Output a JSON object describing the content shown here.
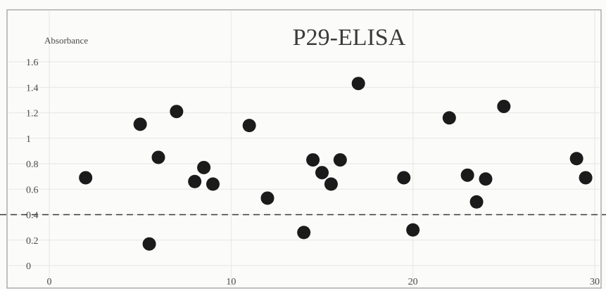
{
  "chart_data": {
    "type": "scatter",
    "title": "P29-ELISA",
    "xlabel": "",
    "ylabel": "Absorbance",
    "xlim": [
      0,
      30
    ],
    "ylim": [
      0,
      1.6
    ],
    "x_ticks": [
      "0",
      "10",
      "20",
      "30"
    ],
    "y_ticks": [
      "0",
      "0.2",
      "0.4",
      "0.6",
      "0.8",
      "1",
      "1.2",
      "1.4",
      "1.6"
    ],
    "grid": true,
    "legend": "none",
    "threshold": {
      "y": 0.4,
      "style": "dashed"
    },
    "point_color": "#1b1b1b",
    "series": [
      {
        "points": [
          {
            "x": 2,
            "y": 0.69
          },
          {
            "x": 5,
            "y": 1.11
          },
          {
            "x": 5.5,
            "y": 0.17
          },
          {
            "x": 6,
            "y": 0.85
          },
          {
            "x": 7,
            "y": 1.21
          },
          {
            "x": 8,
            "y": 0.66
          },
          {
            "x": 8.5,
            "y": 0.77
          },
          {
            "x": 9,
            "y": 0.64
          },
          {
            "x": 11,
            "y": 1.1
          },
          {
            "x": 12,
            "y": 0.53
          },
          {
            "x": 14,
            "y": 0.26
          },
          {
            "x": 14.5,
            "y": 0.83
          },
          {
            "x": 15,
            "y": 0.73
          },
          {
            "x": 15.5,
            "y": 0.64
          },
          {
            "x": 16,
            "y": 0.83
          },
          {
            "x": 17,
            "y": 1.43
          },
          {
            "x": 19.5,
            "y": 0.69
          },
          {
            "x": 20,
            "y": 0.28
          },
          {
            "x": 22,
            "y": 1.16
          },
          {
            "x": 23,
            "y": 0.71
          },
          {
            "x": 23.5,
            "y": 0.5
          },
          {
            "x": 24,
            "y": 0.68
          },
          {
            "x": 25,
            "y": 1.25
          },
          {
            "x": 29,
            "y": 0.84
          },
          {
            "x": 29.5,
            "y": 0.69
          }
        ]
      }
    ]
  }
}
